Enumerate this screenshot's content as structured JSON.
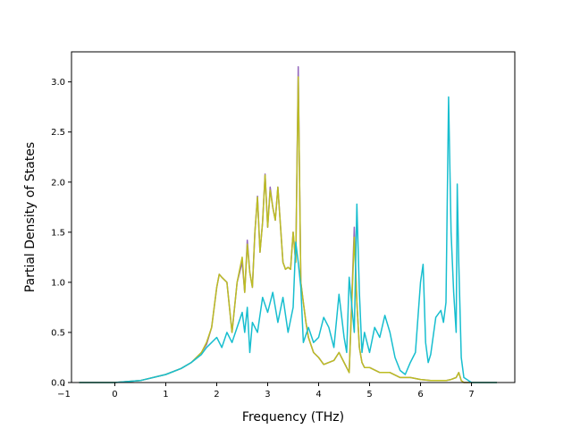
{
  "chart_data": {
    "type": "line",
    "xlabel": "Frequency (THz)",
    "ylabel": "Partial Density of States",
    "xlim": [
      -0.85,
      7.85
    ],
    "ylim": [
      0,
      3.3
    ],
    "xticks": [
      -1,
      0,
      1,
      2,
      3,
      4,
      5,
      6,
      7
    ],
    "yticks": [
      0.0,
      0.5,
      1.0,
      1.5,
      2.0,
      2.5,
      3.0
    ],
    "xtick_labels": [
      "−1",
      "0",
      "1",
      "2",
      "3",
      "4",
      "5",
      "6",
      "7"
    ],
    "ytick_labels": [
      "0.0",
      "0.5",
      "1.0",
      "1.5",
      "2.0",
      "2.5",
      "3.0"
    ],
    "grid": false,
    "legend": "none",
    "series": [
      {
        "color": "#9467bd",
        "x": [
          -0.7,
          0.0,
          0.5,
          1.0,
          1.3,
          1.5,
          1.7,
          1.8,
          1.9,
          2.0,
          2.05,
          2.1,
          2.2,
          2.3,
          2.4,
          2.5,
          2.55,
          2.6,
          2.65,
          2.7,
          2.75,
          2.8,
          2.85,
          2.9,
          2.95,
          3.0,
          3.05,
          3.1,
          3.15,
          3.2,
          3.25,
          3.3,
          3.35,
          3.4,
          3.45,
          3.5,
          3.55,
          3.6,
          3.62,
          3.65,
          3.7,
          3.75,
          3.8,
          3.9,
          4.0,
          4.1,
          4.2,
          4.3,
          4.4,
          4.5,
          4.6,
          4.7,
          4.75,
          4.8,
          4.85,
          4.9,
          5.0,
          5.2,
          5.4,
          5.6,
          5.8,
          6.0,
          6.2,
          6.4,
          6.5,
          6.6,
          6.7,
          6.75,
          6.8,
          6.85,
          7.0,
          7.5
        ],
        "y": [
          0.0,
          0.0,
          0.02,
          0.08,
          0.14,
          0.2,
          0.3,
          0.38,
          0.55,
          0.95,
          1.08,
          1.05,
          1.0,
          0.5,
          1.0,
          1.2,
          0.9,
          1.42,
          1.1,
          0.95,
          1.5,
          1.86,
          1.3,
          1.6,
          2.08,
          1.55,
          1.95,
          1.75,
          1.62,
          1.95,
          1.58,
          1.2,
          1.13,
          1.15,
          1.13,
          1.5,
          1.2,
          3.15,
          2.3,
          1.0,
          0.8,
          0.6,
          0.45,
          0.3,
          0.25,
          0.18,
          0.2,
          0.22,
          0.3,
          0.2,
          0.1,
          1.55,
          0.8,
          0.35,
          0.2,
          0.15,
          0.15,
          0.1,
          0.1,
          0.05,
          0.05,
          0.03,
          0.02,
          0.02,
          0.02,
          0.03,
          0.05,
          0.1,
          0.02,
          0.0,
          0.0,
          0.0
        ]
      },
      {
        "color": "#bcbd22",
        "x": [
          -0.7,
          0.0,
          0.5,
          1.0,
          1.3,
          1.5,
          1.7,
          1.8,
          1.9,
          2.0,
          2.05,
          2.1,
          2.2,
          2.3,
          2.4,
          2.5,
          2.55,
          2.6,
          2.65,
          2.7,
          2.75,
          2.8,
          2.85,
          2.9,
          2.95,
          3.0,
          3.05,
          3.1,
          3.15,
          3.2,
          3.25,
          3.3,
          3.35,
          3.4,
          3.45,
          3.5,
          3.55,
          3.6,
          3.62,
          3.65,
          3.7,
          3.75,
          3.8,
          3.9,
          4.0,
          4.1,
          4.2,
          4.3,
          4.4,
          4.5,
          4.6,
          4.7,
          4.75,
          4.8,
          4.85,
          4.9,
          5.0,
          5.2,
          5.4,
          5.6,
          5.8,
          6.0,
          6.2,
          6.4,
          6.5,
          6.6,
          6.7,
          6.75,
          6.8,
          6.85,
          7.0,
          7.5
        ],
        "y": [
          0.0,
          0.0,
          0.02,
          0.08,
          0.14,
          0.2,
          0.3,
          0.4,
          0.55,
          0.95,
          1.08,
          1.05,
          1.0,
          0.5,
          1.0,
          1.25,
          0.9,
          1.38,
          1.1,
          0.95,
          1.5,
          1.85,
          1.3,
          1.6,
          2.07,
          1.55,
          1.92,
          1.75,
          1.62,
          1.95,
          1.58,
          1.2,
          1.13,
          1.15,
          1.13,
          1.5,
          1.2,
          3.05,
          2.3,
          1.0,
          0.8,
          0.6,
          0.45,
          0.3,
          0.25,
          0.18,
          0.2,
          0.22,
          0.3,
          0.2,
          0.1,
          1.45,
          0.8,
          0.35,
          0.2,
          0.15,
          0.15,
          0.1,
          0.1,
          0.05,
          0.05,
          0.03,
          0.02,
          0.02,
          0.02,
          0.03,
          0.05,
          0.1,
          0.02,
          0.0,
          0.0,
          0.0
        ]
      },
      {
        "color": "#17becf",
        "x": [
          -0.7,
          0.0,
          0.5,
          1.0,
          1.3,
          1.5,
          1.7,
          1.8,
          1.9,
          2.0,
          2.1,
          2.2,
          2.3,
          2.4,
          2.5,
          2.55,
          2.6,
          2.65,
          2.7,
          2.8,
          2.9,
          3.0,
          3.1,
          3.2,
          3.3,
          3.4,
          3.5,
          3.55,
          3.6,
          3.65,
          3.7,
          3.8,
          3.9,
          4.0,
          4.1,
          4.2,
          4.3,
          4.4,
          4.5,
          4.55,
          4.6,
          4.7,
          4.75,
          4.8,
          4.85,
          4.9,
          5.0,
          5.1,
          5.2,
          5.3,
          5.4,
          5.5,
          5.6,
          5.7,
          5.8,
          5.9,
          6.0,
          6.05,
          6.1,
          6.15,
          6.2,
          6.3,
          6.4,
          6.45,
          6.5,
          6.55,
          6.6,
          6.65,
          6.7,
          6.72,
          6.75,
          6.8,
          6.85,
          7.0,
          7.5
        ],
        "y": [
          0.0,
          0.0,
          0.02,
          0.08,
          0.14,
          0.2,
          0.28,
          0.35,
          0.4,
          0.45,
          0.35,
          0.5,
          0.4,
          0.55,
          0.7,
          0.5,
          0.75,
          0.3,
          0.6,
          0.5,
          0.85,
          0.7,
          0.9,
          0.6,
          0.85,
          0.5,
          0.75,
          1.4,
          1.2,
          0.95,
          0.4,
          0.55,
          0.4,
          0.45,
          0.65,
          0.55,
          0.35,
          0.88,
          0.45,
          0.3,
          1.05,
          0.5,
          1.78,
          0.9,
          0.3,
          0.5,
          0.3,
          0.55,
          0.45,
          0.67,
          0.5,
          0.25,
          0.12,
          0.08,
          0.2,
          0.3,
          1.0,
          1.18,
          0.4,
          0.2,
          0.28,
          0.65,
          0.72,
          0.6,
          0.8,
          2.85,
          1.5,
          0.9,
          0.5,
          1.98,
          1.2,
          0.25,
          0.05,
          0.0,
          0.0
        ]
      }
    ]
  }
}
